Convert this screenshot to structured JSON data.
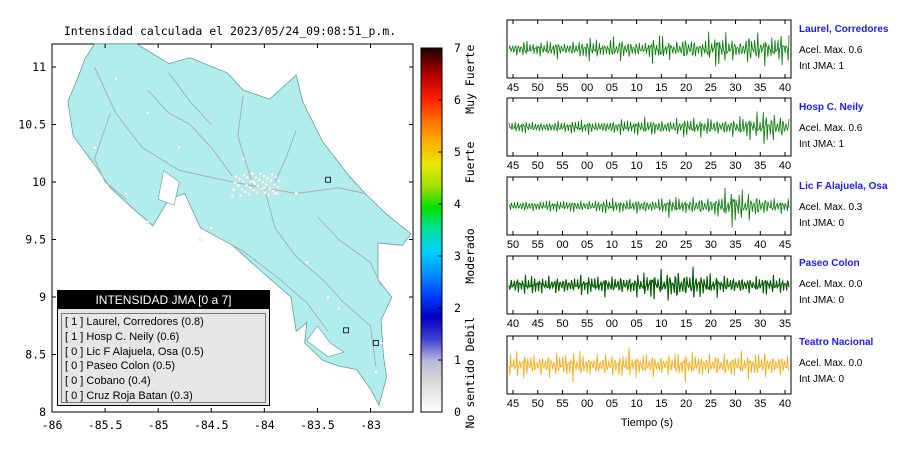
{
  "map": {
    "title": "Intensidad calculada el 2023/05/24_09:08:51_p.m.",
    "x_ticks": [
      "-86",
      "-85.5",
      "-85",
      "-84.5",
      "-84",
      "-83.5",
      "-83"
    ],
    "x_tick_values": [
      -86,
      -85.5,
      -85,
      -84.5,
      -84,
      -83.5,
      -83
    ],
    "y_ticks": [
      "11",
      "10.5",
      "10",
      "9.5",
      "9",
      "8.5",
      "8"
    ],
    "y_tick_values": [
      11,
      10.5,
      10,
      9.5,
      9,
      8.5,
      8
    ],
    "land_color": "#b2eded",
    "legend": {
      "title": "INTENSIDAD JMA [0 a 7]",
      "items": [
        "[ 1 ]  Laurel, Corredores (0.8)",
        "[ 1 ]  Hosp C. Neily (0.6)",
        "[ 0 ]  Lic F Alajuela, Osa (0.5)",
        "[ 0 ]  Paseo Colon (0.5)",
        "[ 0 ]  Cobano (0.4)",
        "[ 0 ]  Cruz Roja Batan (0.3)"
      ]
    }
  },
  "colorbar": {
    "ticks": [
      "7",
      "6",
      "5",
      "4",
      "3",
      "2",
      "1",
      "0"
    ],
    "labels": [
      "Muy Fuerte",
      "Fuerte",
      "Moderado",
      "Debil",
      "No sentido"
    ]
  },
  "traces": [
    {
      "name": "Laurel, Corredores",
      "acel": "Acel. Max. 0.6",
      "jma": "Int JMA: 1",
      "color": "#007a00",
      "ticks": [
        "45",
        "50",
        "55",
        "00",
        "05",
        "10",
        "15",
        "20",
        "25",
        "30",
        "35",
        "40"
      ]
    },
    {
      "name": "Hosp C. Neily",
      "acel": "Acel. Max. 0.6",
      "jma": "Int JMA: 1",
      "color": "#007a00",
      "ticks": [
        "45",
        "50",
        "55",
        "00",
        "05",
        "10",
        "15",
        "20",
        "25",
        "30",
        "35",
        "40"
      ]
    },
    {
      "name": "Lic F Alajuela, Osa",
      "acel": "Acel. Max. 0.3",
      "jma": "Int JMA: 0",
      "color": "#007a00",
      "ticks": [
        "50",
        "55",
        "00",
        "05",
        "10",
        "15",
        "20",
        "25",
        "30",
        "35",
        "40",
        "45"
      ]
    },
    {
      "name": "Paseo Colon",
      "acel": "Acel. Max. 0.0",
      "jma": "Int JMA: 0",
      "color": "#005a00",
      "ticks": [
        "40",
        "45",
        "50",
        "55",
        "00",
        "05",
        "10",
        "15",
        "20",
        "25",
        "30",
        "35"
      ]
    },
    {
      "name": "Teatro Nacional",
      "acel": "Acel. Max. 0.0",
      "jma": "Int JMA: 0",
      "color": "#ffa500",
      "ticks": [
        "45",
        "50",
        "55",
        "00",
        "05",
        "10",
        "15",
        "20",
        "25",
        "30",
        "35",
        "40"
      ]
    }
  ],
  "xlabel": "Tiempo (s)",
  "chart_data": [
    {
      "type": "scatter",
      "title": "Intensidad calculada el 2023/05/24_09:08:51_p.m.",
      "xlim": [
        -86,
        -82.6
      ],
      "ylim": [
        8,
        11.2
      ],
      "series": [
        {
          "name": "stations",
          "points": [
            [
              -85.4,
              10.9
            ],
            [
              -85.1,
              10.6
            ],
            [
              -85.6,
              10.3
            ],
            [
              -84.8,
              10.3
            ],
            [
              -84.2,
              10.2
            ],
            [
              -84.1,
              10.0
            ],
            [
              -84.0,
              9.95
            ],
            [
              -83.9,
              9.9
            ],
            [
              -83.7,
              9.9
            ],
            [
              -83.0,
              9.9
            ],
            [
              -84.5,
              9.6
            ],
            [
              -84.6,
              9.5
            ],
            [
              -83.6,
              9.3
            ],
            [
              -83.4,
              9.0
            ],
            [
              -83.3,
              8.9
            ],
            [
              -82.9,
              8.6
            ],
            [
              -82.95,
              8.35
            ],
            [
              -82.9,
              8.05
            ],
            [
              -85.1,
              9.65
            ],
            [
              -85.3,
              9.9
            ]
          ]
        }
      ]
    },
    {
      "type": "heatmap",
      "title": "",
      "ylim": [
        0,
        7
      ],
      "levels": [
        "No sentido",
        "Debil",
        "Moderado",
        "Fuerte",
        "Muy Fuerte"
      ]
    },
    {
      "type": "line",
      "xlabel": "Tiempo (s)",
      "series": [
        {
          "name": "Laurel, Corredores",
          "values": [
            0.1,
            -0.2,
            0.3,
            -0.1,
            0.2,
            -0.3,
            0.4,
            -0.2,
            0.3,
            -0.4,
            0.5,
            -0.3,
            0.2,
            -0.5,
            0.6,
            -0.4,
            0.3,
            -0.2,
            0.5,
            -0.6,
            0.4,
            -0.3,
            0.6,
            -0.5,
            0.3,
            -0.6,
            0.8,
            -0.7,
            0.5,
            -0.4,
            0.9,
            -0.8,
            0.6,
            -0.5,
            0.7,
            -0.6
          ]
        },
        {
          "name": "Hosp C. Neily",
          "values": [
            0.05,
            -0.1,
            0.15,
            -0.1,
            0.12,
            -0.15,
            0.2,
            -0.1,
            0.18,
            -0.2,
            0.22,
            -0.15,
            0.2,
            -0.25,
            0.3,
            -0.2,
            0.25,
            -0.3,
            0.35,
            -0.3,
            0.28,
            -0.35,
            0.4,
            -0.3,
            0.3,
            -0.4,
            0.35,
            -0.35,
            0.4,
            -0.45,
            0.5,
            -0.5,
            0.9,
            -0.8,
            0.6,
            -0.3
          ]
        },
        {
          "name": "Lic F Alajuela, Osa",
          "values": [
            0.1,
            -0.1,
            0.15,
            -0.12,
            0.1,
            -0.15,
            0.12,
            -0.1,
            0.2,
            -0.18,
            0.15,
            -0.2,
            0.25,
            -0.2,
            0.18,
            -0.22,
            0.3,
            -0.25,
            0.2,
            -0.3,
            0.35,
            -0.3,
            0.25,
            -0.35,
            0.4,
            -0.4,
            0.5,
            -0.6,
            0.9,
            -0.8,
            0.7,
            -0.6,
            0.4,
            -0.3,
            0.2,
            -0.2
          ]
        },
        {
          "name": "Paseo Colon",
          "values": [
            0.3,
            -0.3,
            0.35,
            -0.35,
            0.3,
            -0.3,
            0.4,
            -0.35,
            0.3,
            -0.4,
            0.35,
            -0.3,
            0.4,
            -0.4,
            0.45,
            -0.4,
            0.5,
            -0.5,
            0.6,
            -0.55,
            0.8,
            -0.9,
            0.7,
            -0.8,
            0.5,
            -0.45,
            0.4,
            -0.4,
            0.35,
            -0.35,
            0.3,
            -0.3,
            0.35,
            -0.3,
            0.3,
            -0.3
          ]
        },
        {
          "name": "Teatro Nacional",
          "values": [
            0.5,
            -0.5,
            0.6,
            -0.55,
            0.5,
            -0.6,
            0.55,
            -0.5,
            0.6,
            -0.6,
            0.5,
            -0.55,
            0.6,
            -0.5,
            0.55,
            -0.6,
            0.5,
            -0.55,
            0.6,
            -0.5,
            0.55,
            -0.6,
            0.6,
            -0.5,
            0.5,
            -0.55,
            0.6,
            -0.6,
            0.55,
            -0.5,
            0.5,
            -0.55,
            0.6,
            -0.5,
            0.55,
            -0.5
          ]
        }
      ]
    }
  ]
}
